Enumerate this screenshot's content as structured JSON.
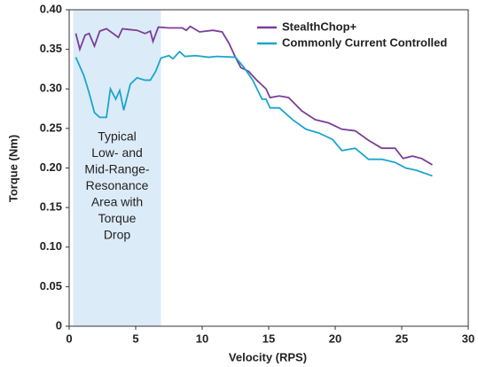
{
  "chart_data": {
    "type": "line",
    "x_label": "Velocity (RPS)",
    "y_label": "Torque (Nm)",
    "xlim": [
      0,
      30
    ],
    "xticks": [
      0,
      5,
      10,
      15,
      20,
      25,
      30
    ],
    "ylim": [
      0,
      0.4
    ],
    "yticks": [
      0,
      0.05,
      {
        "value": 0.1,
        "label": "0.10"
      },
      0.15,
      {
        "value": 0.2,
        "label": "0.20"
      },
      0.25,
      {
        "value": 0.3,
        "label": "0.30"
      },
      0.35,
      {
        "value": 0.4,
        "label": "0.40"
      }
    ],
    "legend": "upper right",
    "shade_x": [
      0.3,
      6.9
    ],
    "shade_color": "#dcebf8",
    "annotation": [
      "Typical",
      "Low- and",
      "Mid-Range-",
      "Resonance",
      "Area with",
      "Torque",
      "Drop"
    ],
    "series": [
      {
        "name": "StealthChop+",
        "color": "#7b3f98",
        "x": [
          0.5,
          0.8,
          1.2,
          1.5,
          1.9,
          2.3,
          2.8,
          3.3,
          3.7,
          4.0,
          4.5,
          5.1,
          5.7,
          6.1,
          6.3,
          6.7,
          7.5,
          8.5,
          8.8,
          9.1,
          9.8,
          10.8,
          11.5,
          12.0,
          12.5,
          12.9,
          13.5,
          14.1,
          14.8,
          15.1,
          15.8,
          16.5,
          17.5,
          18.5,
          19.5,
          20.5,
          21.5,
          22.5,
          23.5,
          24.5,
          25.1,
          25.8,
          26.5,
          27.3
        ],
        "values": [
          0.37,
          0.35,
          0.368,
          0.37,
          0.354,
          0.373,
          0.376,
          0.37,
          0.365,
          0.376,
          0.375,
          0.374,
          0.37,
          0.373,
          0.36,
          0.378,
          0.377,
          0.377,
          0.374,
          0.379,
          0.372,
          0.374,
          0.372,
          0.358,
          0.34,
          0.327,
          0.322,
          0.311,
          0.3,
          0.289,
          0.291,
          0.289,
          0.272,
          0.261,
          0.257,
          0.249,
          0.247,
          0.235,
          0.225,
          0.225,
          0.212,
          0.215,
          0.212,
          0.204
        ]
      },
      {
        "name": "Commonly Current Controlled",
        "color": "#1ba6cc",
        "x": [
          0.5,
          1.1,
          1.5,
          1.9,
          2.3,
          2.8,
          3.1,
          3.5,
          3.8,
          4.1,
          4.6,
          5.1,
          5.7,
          6.1,
          6.5,
          6.9,
          7.5,
          7.8,
          8.3,
          8.7,
          9.5,
          10.5,
          11.1,
          12.5,
          13.1,
          13.8,
          14.5,
          14.8,
          15.1,
          15.8,
          16.8,
          17.8,
          18.8,
          19.8,
          20.5,
          21.5,
          22.5,
          23.5,
          24.5,
          25.3,
          26.1,
          27.3
        ],
        "values": [
          0.34,
          0.317,
          0.295,
          0.27,
          0.264,
          0.264,
          0.3,
          0.287,
          0.298,
          0.273,
          0.306,
          0.314,
          0.311,
          0.311,
          0.322,
          0.339,
          0.342,
          0.338,
          0.347,
          0.341,
          0.342,
          0.34,
          0.341,
          0.34,
          0.328,
          0.311,
          0.287,
          0.287,
          0.276,
          0.276,
          0.261,
          0.249,
          0.244,
          0.236,
          0.222,
          0.225,
          0.211,
          0.211,
          0.207,
          0.2,
          0.197,
          0.19
        ]
      }
    ]
  }
}
